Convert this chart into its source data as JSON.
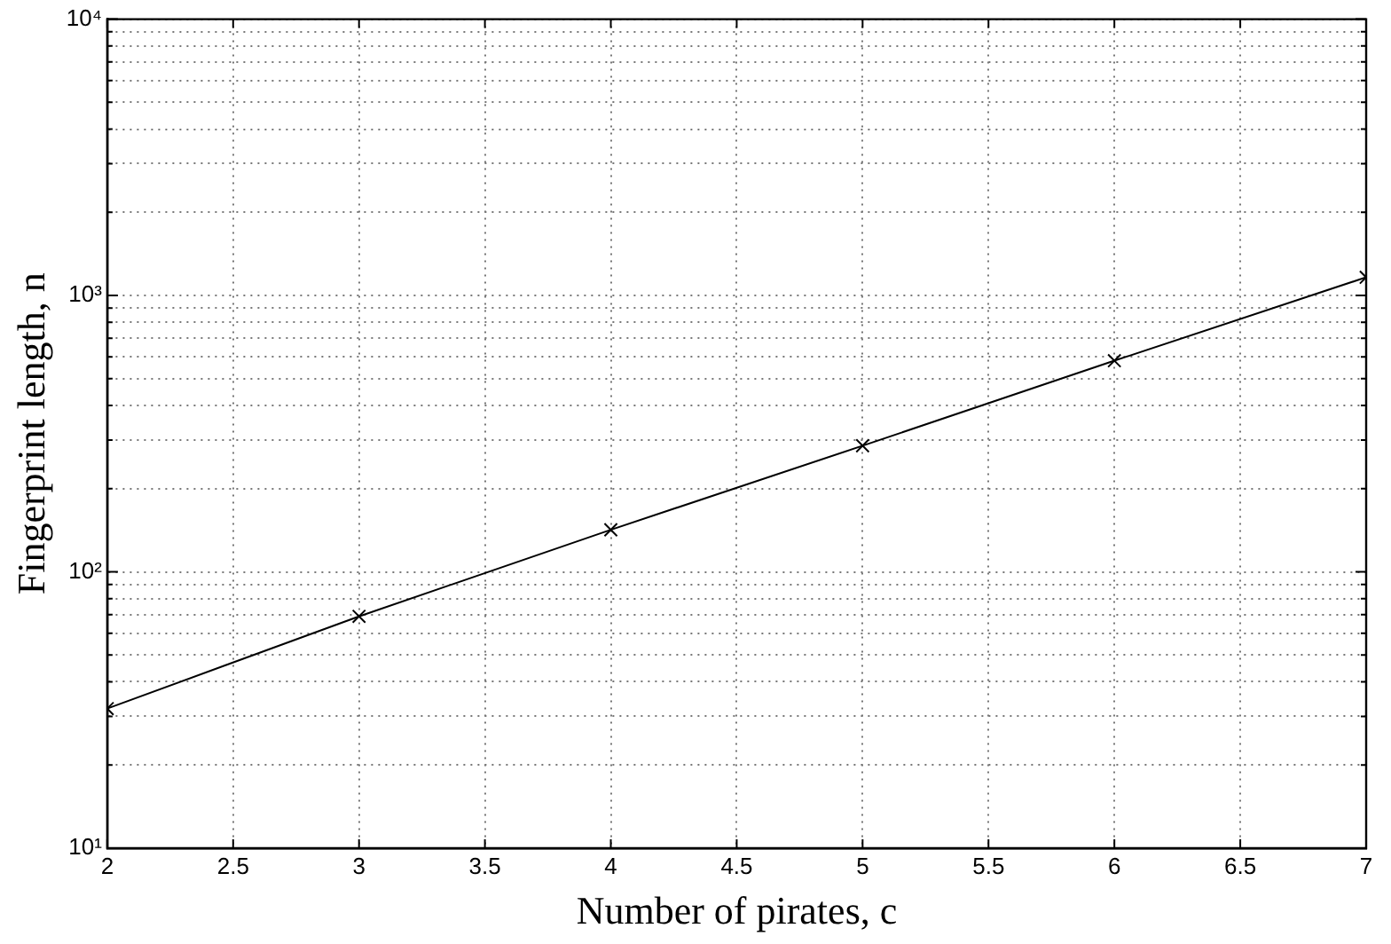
{
  "chart_data": {
    "type": "line",
    "xlabel": "Number of pirates, c",
    "ylabel": "Fingerprint length, n",
    "x": [
      2,
      3,
      4,
      5,
      6,
      7
    ],
    "series": [
      {
        "color": "#000000",
        "values": [
          32,
          69,
          142,
          286,
          581,
          1164
        ]
      }
    ],
    "xlim": [
      2,
      7
    ],
    "xticks": [
      2,
      2.5,
      3,
      3.5,
      4,
      4.5,
      5,
      5.5,
      6,
      6.5,
      7
    ],
    "ylim": [
      10,
      10000
    ],
    "yticks": [
      {
        "value": 10,
        "label": "10¹"
      },
      {
        "value": 20,
        "label": null
      },
      {
        "value": 30,
        "label": null
      },
      {
        "value": 40,
        "label": null
      },
      {
        "value": 50,
        "label": null
      },
      {
        "value": 60,
        "label": null
      },
      {
        "value": 70,
        "label": null
      },
      {
        "value": 80,
        "label": null
      },
      {
        "value": 90,
        "label": null
      },
      {
        "value": 100,
        "label": "10²"
      },
      {
        "value": 200,
        "label": null
      },
      {
        "value": 300,
        "label": null
      },
      {
        "value": 400,
        "label": null
      },
      {
        "value": 500,
        "label": null
      },
      {
        "value": 600,
        "label": null
      },
      {
        "value": 700,
        "label": null
      },
      {
        "value": 800,
        "label": null
      },
      {
        "value": 900,
        "label": null
      },
      {
        "value": 1000,
        "label": "10³"
      },
      {
        "value": 2000,
        "label": null
      },
      {
        "value": 3000,
        "label": null
      },
      {
        "value": 4000,
        "label": null
      },
      {
        "value": 5000,
        "label": null
      },
      {
        "value": 6000,
        "label": null
      },
      {
        "value": 7000,
        "label": null
      },
      {
        "value": 8000,
        "label": null
      },
      {
        "value": 9000,
        "label": null
      },
      {
        "value": 10000,
        "label": "10⁴"
      }
    ],
    "log": "y",
    "grid": true,
    "legend": false,
    "marker": "cross",
    "line_style": "solid"
  }
}
